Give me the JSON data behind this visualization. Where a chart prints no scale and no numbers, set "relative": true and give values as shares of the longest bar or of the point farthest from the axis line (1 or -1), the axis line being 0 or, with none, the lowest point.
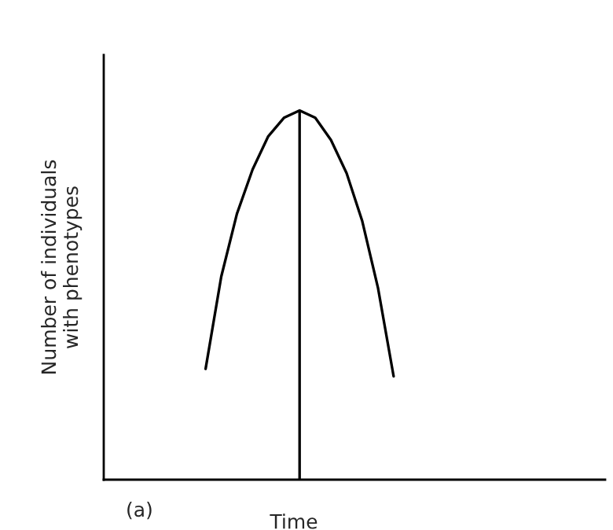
{
  "chart_data": {
    "type": "line",
    "relative": true,
    "xlabel": "Time",
    "ylabel": "Number of individuals\nwith phenotypes",
    "categories": [
      null,
      null,
      null,
      null,
      null,
      null,
      null,
      null,
      null,
      null,
      null,
      null,
      null,
      null,
      null,
      null,
      null,
      null,
      null,
      null,
      null,
      null,
      null,
      null,
      null,
      null,
      null,
      null,
      null,
      null,
      null,
      null
    ],
    "series": [
      {
        "color": "#000000",
        "values": [
          null,
          null,
          null,
          null,
          null,
          null,
          0.3,
          0.55,
          0.72,
          0.84,
          0.93,
          0.98,
          1.0,
          0.98,
          0.92,
          0.83,
          0.7,
          0.52,
          0.28,
          null,
          null,
          null,
          null,
          null,
          null,
          null,
          null,
          null,
          null,
          null,
          null,
          null
        ]
      }
    ],
    "annotations": [
      "(a)"
    ],
    "legend": false,
    "marker": "none",
    "line_style": "solid"
  }
}
